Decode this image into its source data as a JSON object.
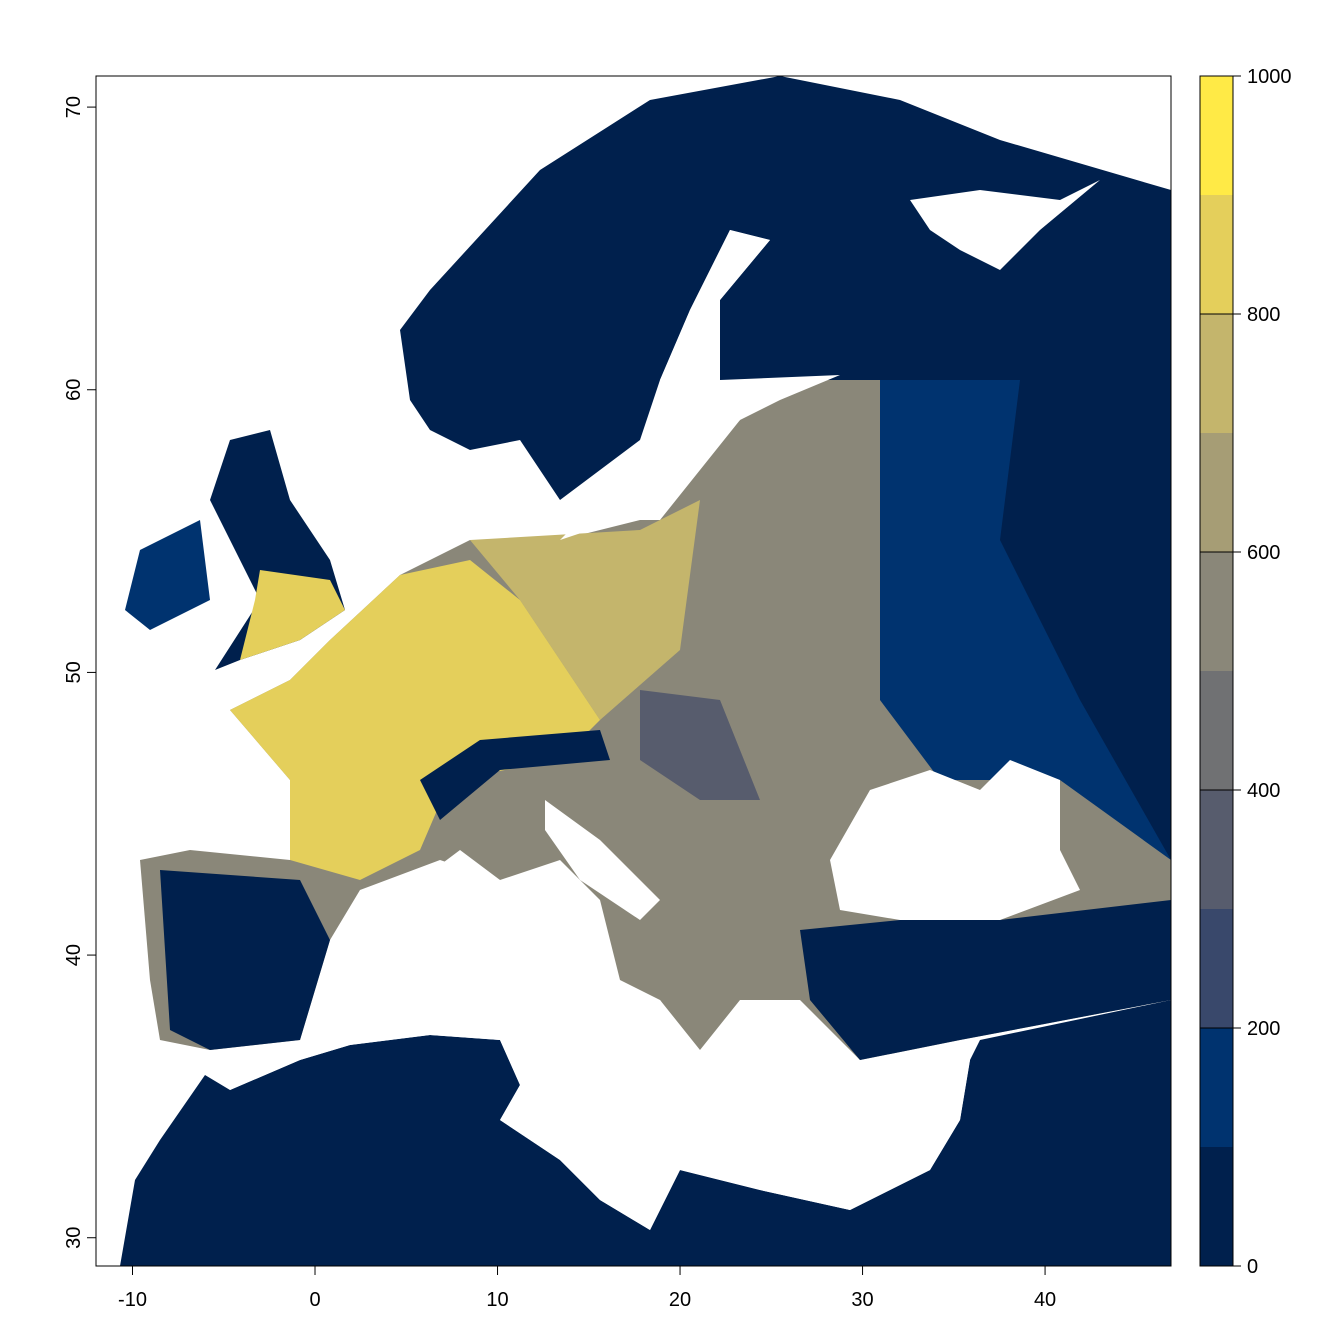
{
  "chart_data": {
    "type": "raster",
    "xlim": [
      -12,
      46.9
    ],
    "ylim": [
      29,
      71.1
    ],
    "xticks": [
      -10,
      0,
      10,
      20,
      30,
      40
    ],
    "yticks": [
      30,
      40,
      50,
      60,
      70
    ],
    "colorbar": {
      "breaks": [
        0,
        100,
        200,
        300,
        400,
        500,
        600,
        700,
        800,
        900,
        1000
      ],
      "colors": [
        "#00204d",
        "#00336f",
        "#39486b",
        "#575c6d",
        "#707173",
        "#8a8779",
        "#a69d75",
        "#c4b56c",
        "#e4cf5b",
        "#ffea46"
      ],
      "ticks": [
        0,
        200,
        400,
        600,
        800,
        1000
      ]
    }
  }
}
